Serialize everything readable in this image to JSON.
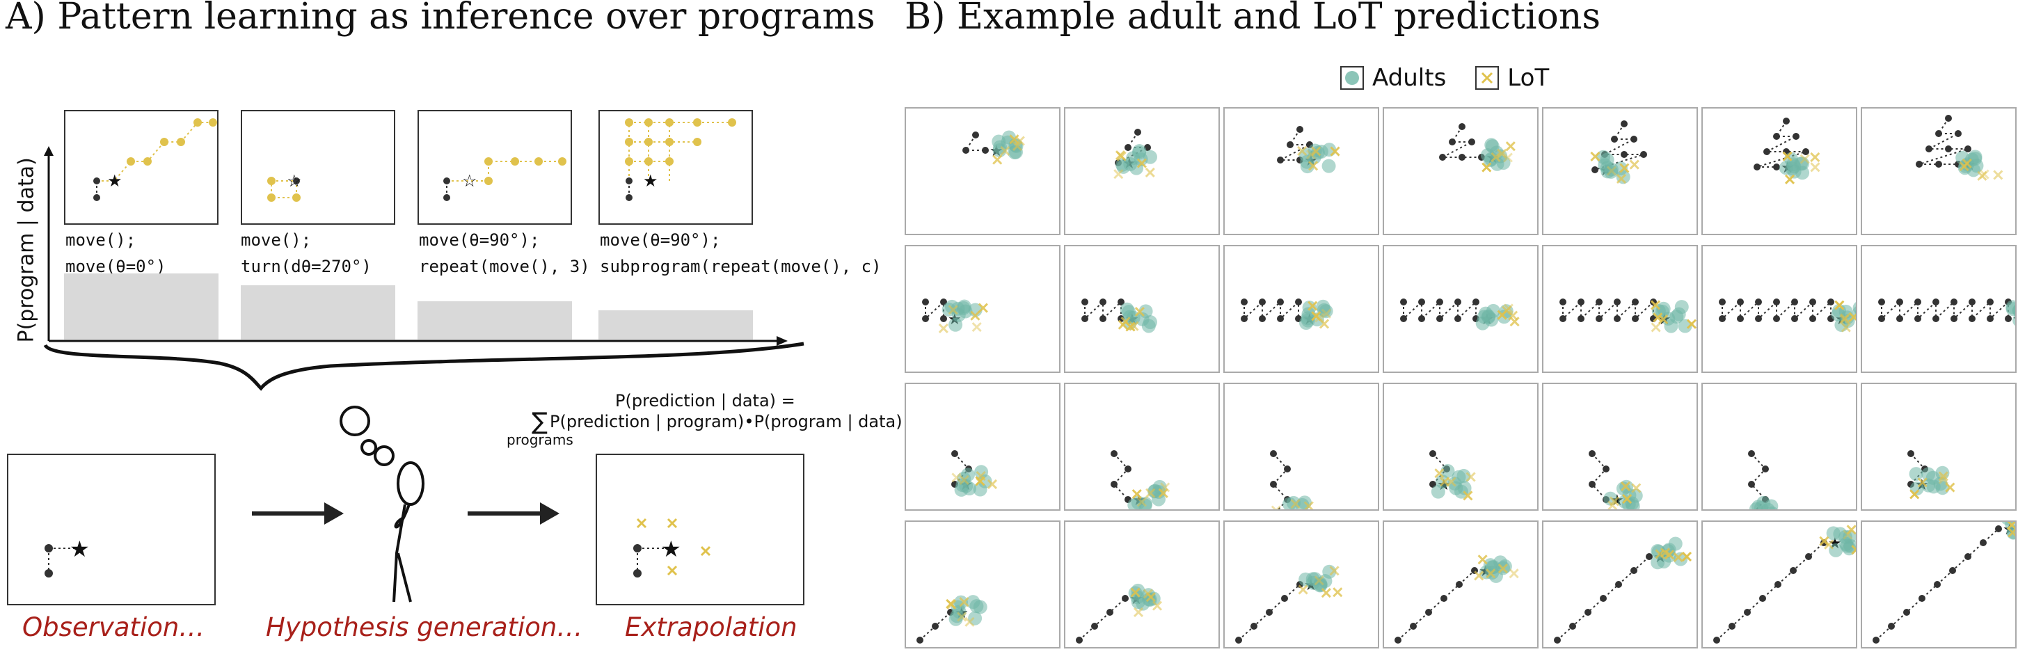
{
  "panel_a": {
    "title": "A) Pattern learning as inference over programs",
    "y_axis_label": "P(program | data)",
    "programs": [
      {
        "line1": "move();",
        "line2": "move(θ=0°)",
        "probability": 0.95
      },
      {
        "line1": "move();",
        "line2": "turn(dθ=270°)",
        "probability": 0.78
      },
      {
        "line1": "move(θ=90°);",
        "line2": "repeat(move(), 3)",
        "probability": 0.55
      },
      {
        "line1": "move(θ=90°);",
        "line2": "subprogram(repeat(move(), c)",
        "probability": 0.42
      }
    ],
    "formula": {
      "line1": "P(prediction | data) =",
      "sum": "∑",
      "line2": "P(prediction | program)•P(program | data)",
      "sub": "programs"
    },
    "captions": {
      "observation": "Observation…",
      "hypothesis": "Hypothesis generation…",
      "extrapolation": "Extrapolation"
    }
  },
  "panel_b": {
    "title": "B) Example adult and LoT predictions",
    "legend": {
      "adults": "Adults",
      "lot": "LoT"
    },
    "rows": 4,
    "cols": 7
  },
  "colors": {
    "adults": "#6fb6a6",
    "lot": "#e0c24c",
    "points": "#333333",
    "caption": "#a8201a",
    "bars": "#d9d9d9"
  },
  "icons": [
    "star-icon",
    "thought-bubble-icon",
    "thinking-person-icon",
    "arrow-icon"
  ]
}
